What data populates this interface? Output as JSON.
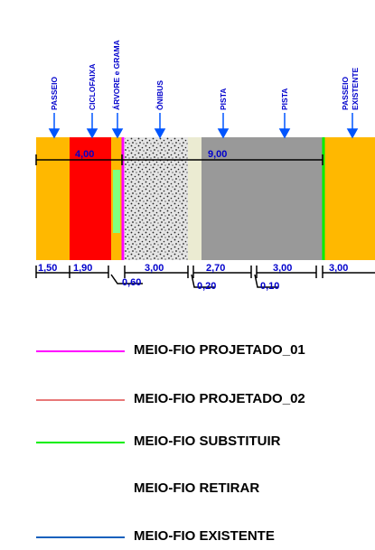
{
  "section": {
    "labels": {
      "passeio": "PASSEIO",
      "ciclofaixa": "CICLOFAIXA",
      "arvore": "ÁRVORE e GRAMA",
      "onibus": "ÔNIBUS",
      "pista1": "PISTA",
      "pista2": "PISTA",
      "passeio_existente_1": "PASSEIO",
      "passeio_existente_2": "EXISTENTE"
    },
    "top_dims": {
      "left": "4,00",
      "right": "9,00"
    },
    "bottom_dims": {
      "d1": "1,50",
      "d2": "1,90",
      "d3": "3,00",
      "d4": "2,70",
      "d5": "3,00",
      "d6": "3,00",
      "s1": "0,60",
      "s2": "0,20",
      "s3": "0,10"
    },
    "colors": {
      "sidewalk": "#ffb800",
      "bike_lane": "#ff0000",
      "tree_strip": "#80ff80",
      "bus_lane": "#e4e4e4",
      "gap_strip": "#ebebd2",
      "road": "#999999",
      "dim_text": "#0000cc",
      "arrow": "#0055ff"
    }
  },
  "legend": [
    {
      "label": "MEIO-FIO PROJETADO_01",
      "color": "#ff00ff"
    },
    {
      "label": "MEIO-FIO PROJETADO_02",
      "color": "#e87878"
    },
    {
      "label": "MEIO-FIO SUBSTITUIR",
      "color": "#00ee00"
    },
    {
      "label": "MEIO-FIO RETIRAR",
      "color": ""
    },
    {
      "label": "MEIO-FIO EXISTENTE",
      "color": "#1560bd"
    }
  ]
}
